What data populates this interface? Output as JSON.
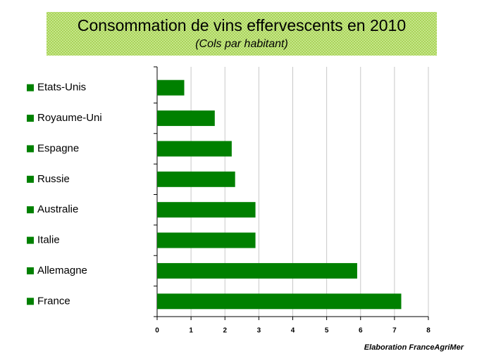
{
  "chart_data": {
    "type": "hbar",
    "title": "Consommation de vins effervescents en 2010",
    "subtitle": "(Cols par habitant)",
    "source": "Elaboration FranceAgriMer",
    "categories": [
      "Etats-Unis",
      "Royaume-Uni",
      "Espagne",
      "Russie",
      "Australie",
      "Italie",
      "Allemagne",
      "France"
    ],
    "values": [
      0.8,
      1.7,
      2.2,
      2.3,
      2.9,
      2.9,
      5.9,
      7.2
    ],
    "color": "#008000",
    "xlim": [
      0,
      8
    ],
    "xticks": [
      0,
      1,
      2,
      3,
      4,
      5,
      6,
      7,
      8
    ],
    "grid": true
  }
}
